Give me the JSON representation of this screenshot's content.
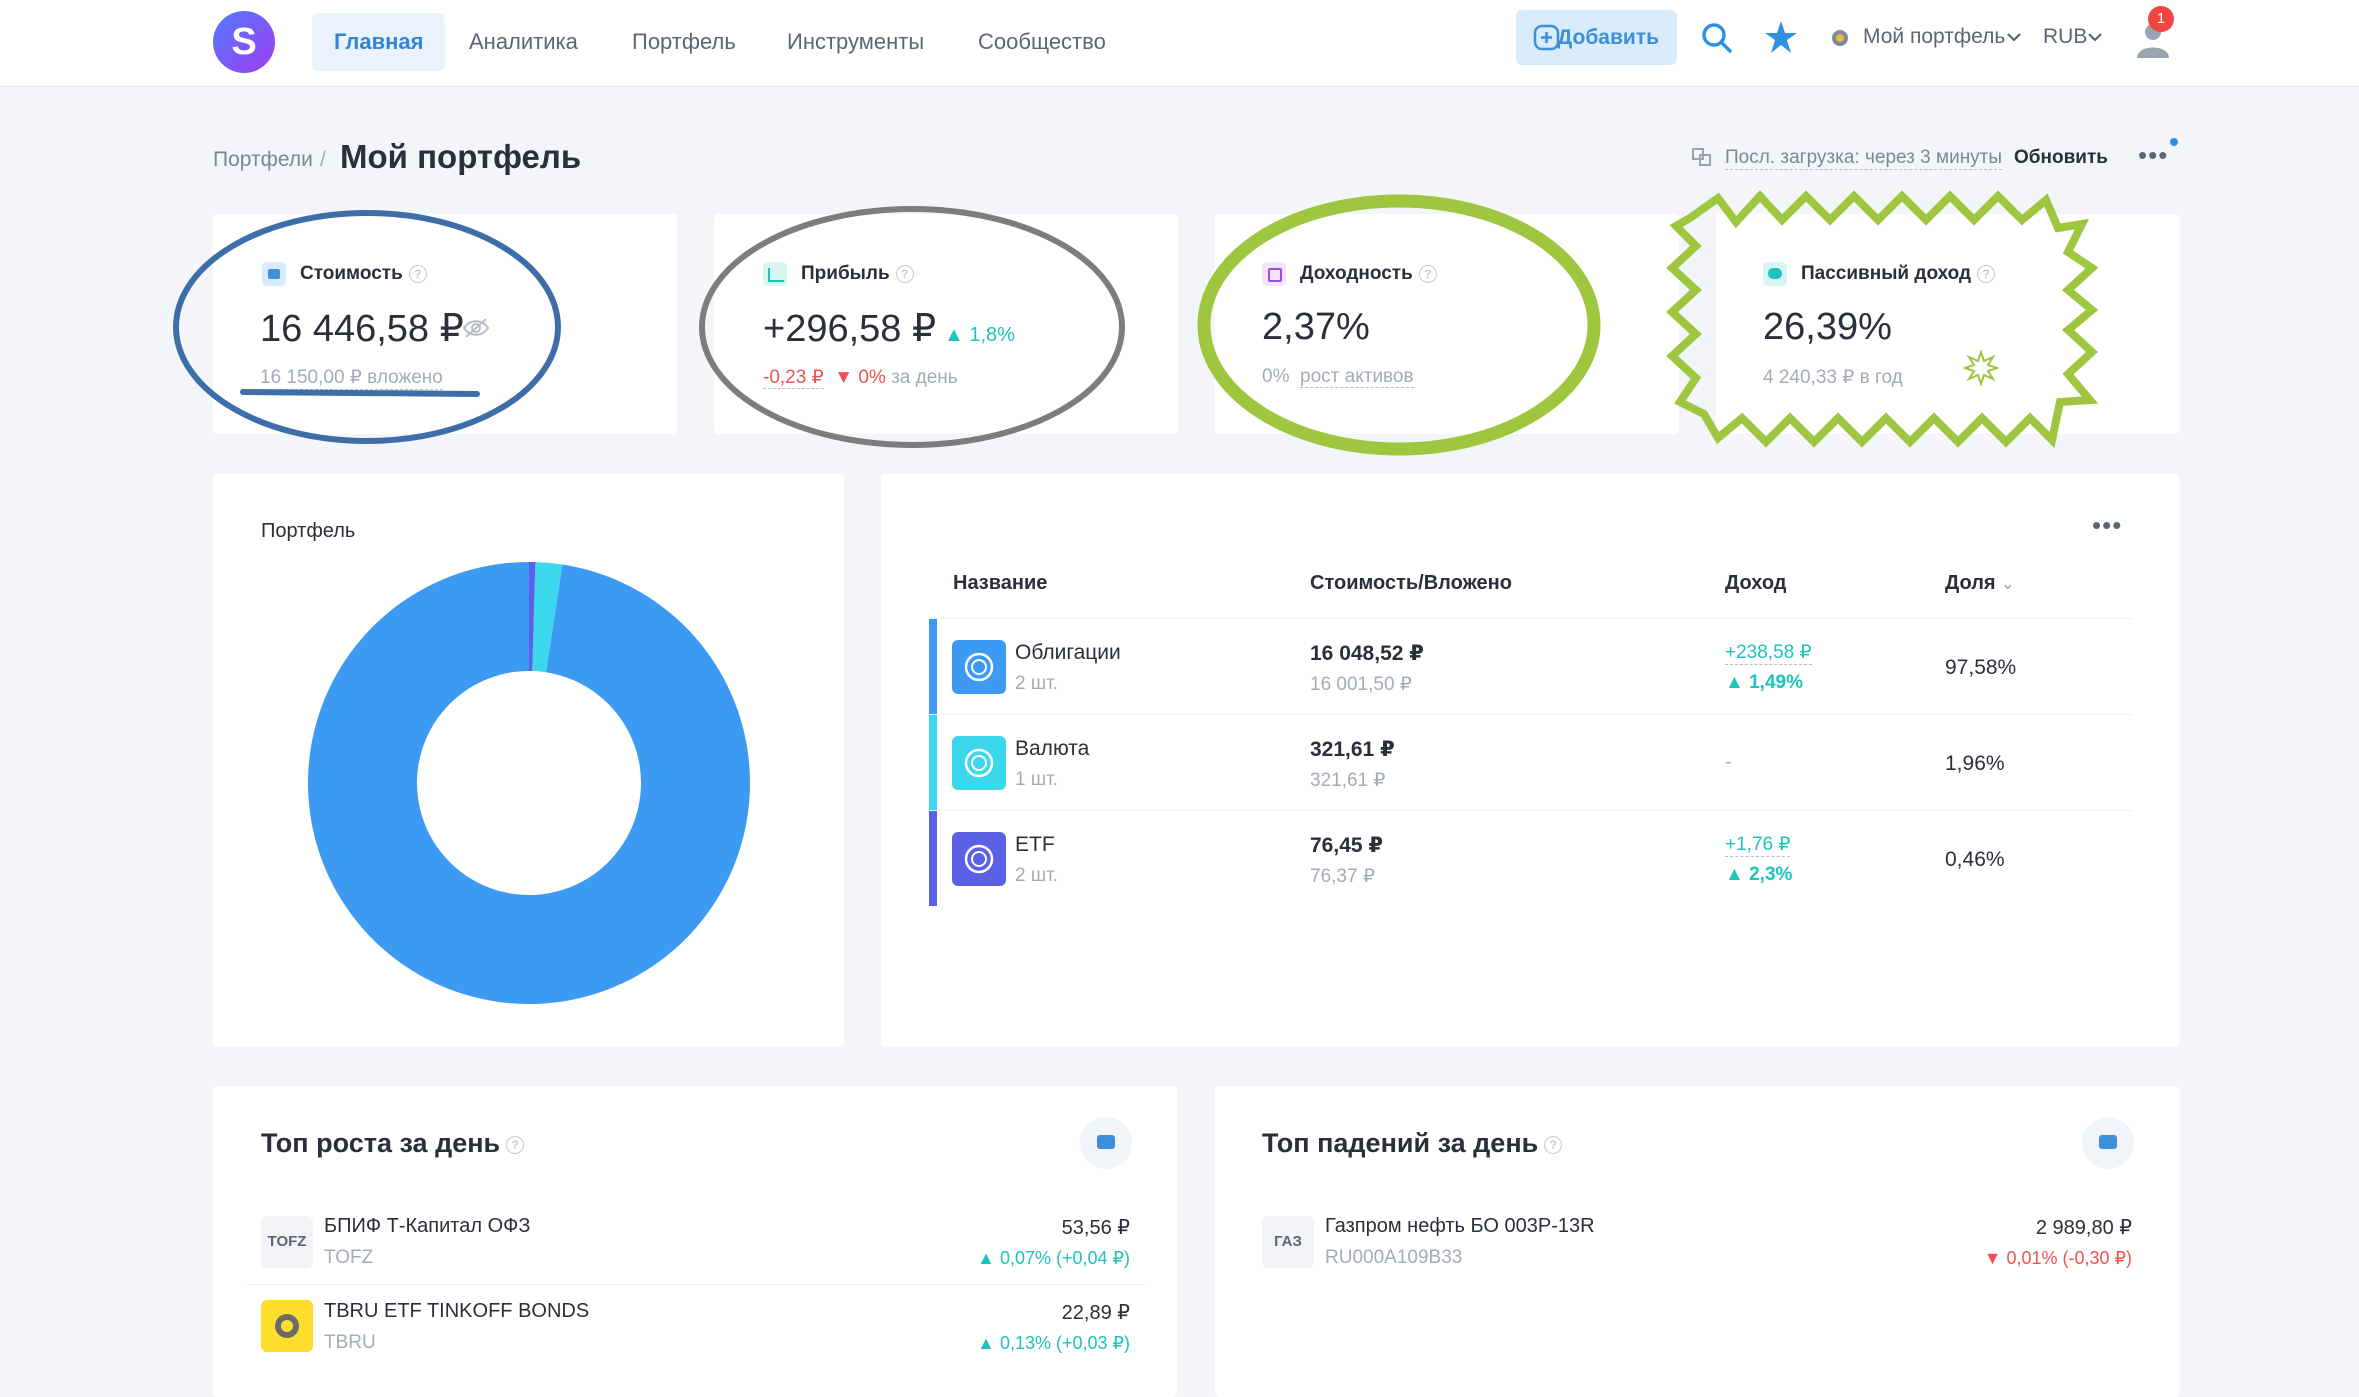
{
  "brand": {
    "letter": "S"
  },
  "nav": [
    {
      "label": "Главная",
      "active": true
    },
    {
      "label": "Аналитика",
      "active": false
    },
    {
      "label": "Портфель",
      "active": false
    },
    {
      "label": "Инструменты",
      "active": false
    },
    {
      "label": "Сообщество",
      "active": false
    }
  ],
  "header": {
    "add_label": "Добавить",
    "portfolio_select": "Мой портфель",
    "currency": "RUB",
    "notification_count": "1",
    "icons": [
      "search-icon",
      "star-icon",
      "portfolio-icon",
      "user-icon",
      "chevron-down-icon"
    ]
  },
  "breadcrumb": {
    "parent": "Портфели",
    "separator": "/",
    "current": "Мой портфель"
  },
  "status": {
    "last_load": "Посл. загрузка: через 3 минуты",
    "refresh": "Обновить"
  },
  "stats": {
    "value": {
      "title": "Стоимость",
      "main": "16 446,58 ₽",
      "sub": "16 150,00 ₽ вложено"
    },
    "profit": {
      "title": "Прибыль",
      "main": "+296,58 ₽",
      "change": "1,8%",
      "day_value": "-0,23 ₽",
      "day_pct": "0%",
      "day_label": "за день"
    },
    "yield": {
      "title": "Доходность",
      "main": "2,37%",
      "sub_pct": "0%",
      "sub_label": "рост активов"
    },
    "passive": {
      "title": "Пассивный доход",
      "main": "26,39%",
      "sub": "4 240,33 ₽ в год"
    }
  },
  "portfolio_chart": {
    "title": "Портфель"
  },
  "chart_data": {
    "type": "pie",
    "style": "donut",
    "categories": [
      "Облигации",
      "Валюта",
      "ETF"
    ],
    "values": [
      97.58,
      1.96,
      0.46
    ],
    "colors": [
      "#3d9af2",
      "#3bd7ec",
      "#5b61e6"
    ]
  },
  "table": {
    "headers": {
      "name": "Название",
      "value": "Стоимость/Вложено",
      "income": "Доход",
      "share": "Доля"
    },
    "rows": [
      {
        "name": "Облигации",
        "count": "2 шт.",
        "value": "16 048,52 ₽",
        "invested": "16 001,50 ₽",
        "income": "+238,58 ₽",
        "income_pct": "1,49%",
        "share": "97,58%",
        "color": "#3d9af2"
      },
      {
        "name": "Валюта",
        "count": "1 шт.",
        "value": "321,61 ₽",
        "invested": "321,61 ₽",
        "income": "-",
        "income_pct": "",
        "share": "1,96%",
        "color": "#3bd7ec"
      },
      {
        "name": "ETF",
        "count": "2 шт.",
        "value": "76,45 ₽",
        "invested": "76,37 ₽",
        "income": "+1,76 ₽",
        "income_pct": "2,3%",
        "share": "0,46%",
        "color": "#5b61e6"
      }
    ]
  },
  "top_gainers": {
    "title": "Топ роста за день",
    "items": [
      {
        "ticker_badge": "TOFZ",
        "name": "БПИФ Т-Капитал ОФЗ",
        "ticker": "TOFZ",
        "price": "53,56 ₽",
        "pct": "0,07%",
        "abs": "(+0,04 ₽)"
      },
      {
        "ticker_badge": "",
        "name": "TBRU ETF TINKOFF BONDS",
        "ticker": "TBRU",
        "price": "22,89 ₽",
        "pct": "0,13%",
        "abs": "(+0,03 ₽)"
      }
    ]
  },
  "top_losers": {
    "title": "Топ падений за день",
    "items": [
      {
        "ticker_badge": "ГАЗ",
        "name": "Газпром нефть БО 003Р-13R",
        "ticker": "RU000A109B33",
        "price": "2 989,80 ₽",
        "pct": "0,01%",
        "abs": "(-0,30 ₽)"
      }
    ]
  }
}
